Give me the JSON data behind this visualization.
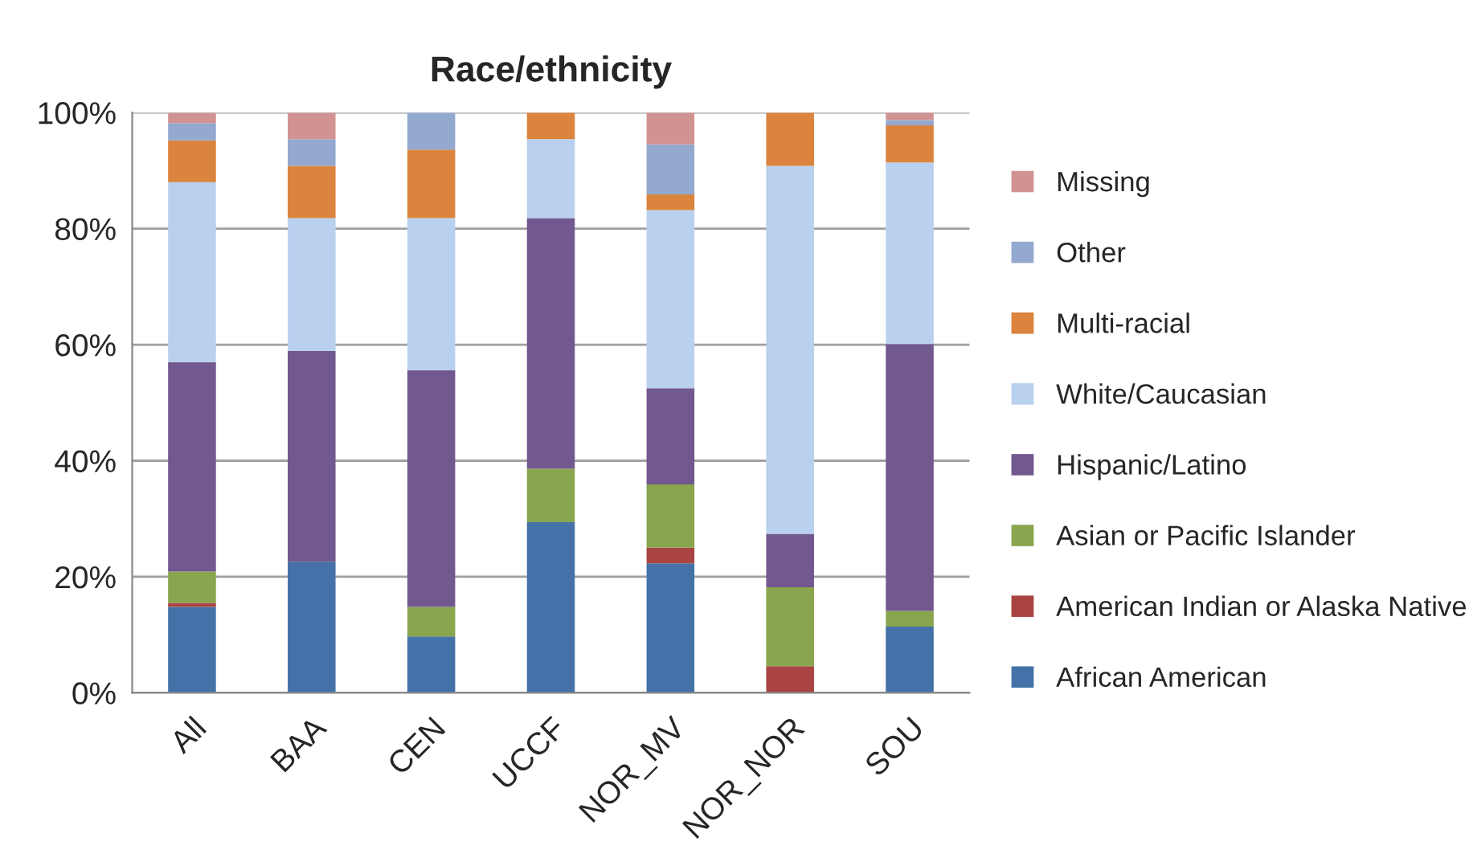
{
  "chart_data": {
    "type": "bar",
    "title": "Race/ethnicity",
    "stacked": true,
    "categories": [
      "All",
      "BAA",
      "CEN",
      "UCCF",
      "NOR_MV",
      "NOR_NOR",
      "SOU"
    ],
    "series": [
      {
        "name": "African American",
        "color": "#4472a8",
        "values": [
          14.8,
          22.6,
          9.7,
          29.4,
          22.3,
          0,
          11.4
        ]
      },
      {
        "name": "American Indian or Alaska Native",
        "color": "#a94442",
        "values": [
          0.7,
          0,
          0,
          0,
          2.7,
          4.6,
          0
        ]
      },
      {
        "name": "Asian or Pacific Islander",
        "color": "#89a54e",
        "values": [
          5.4,
          0,
          5.1,
          9.2,
          10.9,
          13.6,
          2.7
        ]
      },
      {
        "name": "Hispanic/Latino",
        "color": "#71588f",
        "values": [
          36.1,
          36.3,
          40.8,
          43.2,
          16.6,
          9.2,
          46.0
        ]
      },
      {
        "name": "White/Caucasian",
        "color": "#b9d0ee",
        "values": [
          31.0,
          22.9,
          26.2,
          13.6,
          30.7,
          63.4,
          31.3
        ]
      },
      {
        "name": "Multi-racial",
        "color": "#db843d",
        "values": [
          7.2,
          9.0,
          11.8,
          4.6,
          2.7,
          9.2,
          6.4
        ]
      },
      {
        "name": "Other",
        "color": "#93a9cf",
        "values": [
          3.0,
          4.6,
          6.4,
          0,
          8.6,
          0,
          0.9
        ]
      },
      {
        "name": "Missing",
        "color": "#d19392",
        "values": [
          1.8,
          4.6,
          0,
          0,
          5.5,
          0,
          1.3
        ]
      }
    ],
    "ylim": [
      0,
      100
    ],
    "yticks": [
      {
        "value": 0,
        "label": "0%"
      },
      {
        "value": 20,
        "label": "20%"
      },
      {
        "value": 40,
        "label": "40%"
      },
      {
        "value": 60,
        "label": "60%"
      },
      {
        "value": 80,
        "label": "80%"
      },
      {
        "value": 100,
        "label": "100%"
      }
    ],
    "grid": "y",
    "legend": "right"
  }
}
